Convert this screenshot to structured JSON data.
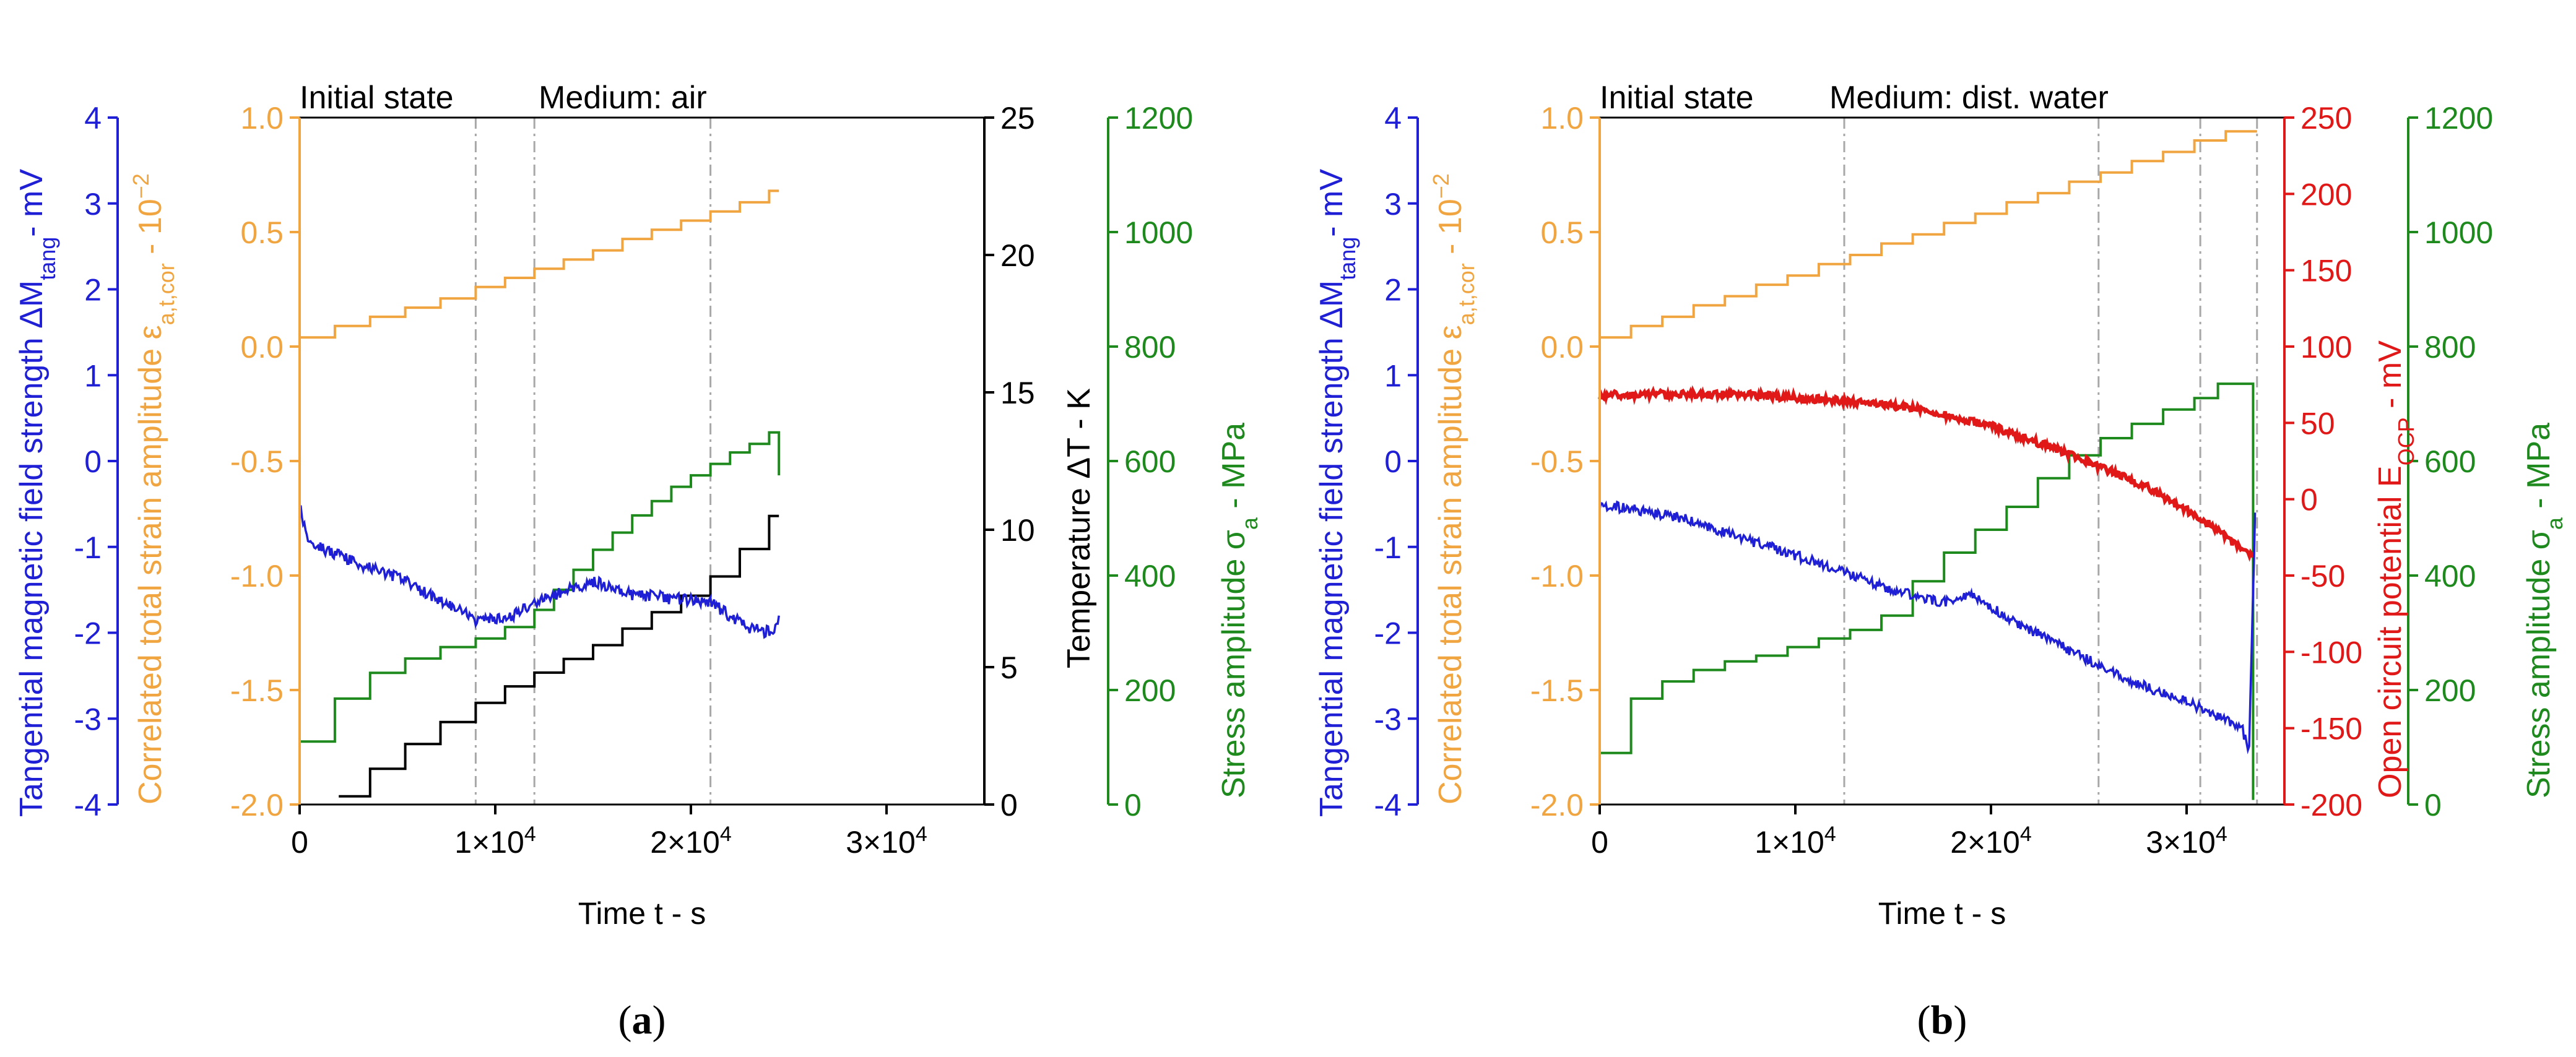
{
  "colors": {
    "blue": "#1f1fd6",
    "orange": "#f0a540",
    "black": "#000000",
    "green": "#1e8a1e",
    "red": "#e01818",
    "grid": "#a8a8a8"
  },
  "chart_data": [
    {
      "panel": "a",
      "type": "line",
      "caption": {
        "open": "(",
        "letter": "a",
        "close": ")"
      },
      "header": {
        "state": "Initial state",
        "medium": "Medium: air"
      },
      "xlabel": "Time t - s",
      "xlim": [
        0,
        35000
      ],
      "xticks": [
        {
          "v": 0,
          "t": "0"
        },
        {
          "v": 10000,
          "t": "1×10"
        },
        {
          "v": 20000,
          "t": "2×10"
        },
        {
          "v": 30000,
          "t": "3×10"
        }
      ],
      "xtick_exp": "4",
      "vlines": [
        9000,
        12000,
        21000
      ],
      "axes": {
        "blue": {
          "label_main": "Tangential magnetic field strength ΔM",
          "label_sub": "tang",
          "label_tail": "- mV",
          "range": [
            -4,
            4
          ],
          "ticks": [
            "-4",
            "-3",
            "-2",
            "-1",
            "0",
            "1",
            "2",
            "3",
            "4"
          ]
        },
        "orange": {
          "label_main": "Correlated total strain amplitude ε",
          "label_sub": "a,t,cor",
          "label_tail": " - 10",
          "label_sup": "−2",
          "range": [
            -2.0,
            1.0
          ],
          "ticks": [
            "-2.0",
            "-1.5",
            "-1.0",
            "-0.5",
            "0.0",
            "0.5",
            "1.0"
          ]
        },
        "black": {
          "label": "Temperature ΔT - K",
          "range": [
            0,
            25
          ],
          "ticks": [
            "0",
            "5",
            "10",
            "15",
            "20",
            "25"
          ]
        },
        "green": {
          "label_main": "Stress amplitude σ",
          "label_sub": "a",
          "label_tail": " - MPa",
          "range": [
            0,
            1200
          ],
          "ticks": [
            "0",
            "200",
            "400",
            "600",
            "800",
            "1000",
            "1200"
          ]
        }
      },
      "series": [
        {
          "name": "Correlated total strain amplitude",
          "axis": "orange",
          "kind": "staircase",
          "x_end": 24500,
          "steps": [
            {
              "x": 0,
              "y": 0.04
            },
            {
              "x": 1800,
              "y": 0.09
            },
            {
              "x": 3600,
              "y": 0.13
            },
            {
              "x": 5400,
              "y": 0.17
            },
            {
              "x": 7200,
              "y": 0.21
            },
            {
              "x": 9000,
              "y": 0.26
            },
            {
              "x": 10500,
              "y": 0.3
            },
            {
              "x": 12000,
              "y": 0.34
            },
            {
              "x": 13500,
              "y": 0.38
            },
            {
              "x": 15000,
              "y": 0.42
            },
            {
              "x": 16500,
              "y": 0.47
            },
            {
              "x": 18000,
              "y": 0.51
            },
            {
              "x": 19500,
              "y": 0.55
            },
            {
              "x": 21000,
              "y": 0.59
            },
            {
              "x": 22500,
              "y": 0.63
            },
            {
              "x": 24000,
              "y": 0.68
            }
          ]
        },
        {
          "name": "Stress amplitude",
          "axis": "green",
          "kind": "staircase",
          "x_end": 24500,
          "steps": [
            {
              "x": 0,
              "y": 110
            },
            {
              "x": 1800,
              "y": 185
            },
            {
              "x": 3600,
              "y": 230
            },
            {
              "x": 5400,
              "y": 255
            },
            {
              "x": 7200,
              "y": 275
            },
            {
              "x": 9000,
              "y": 290
            },
            {
              "x": 10500,
              "y": 310
            },
            {
              "x": 12000,
              "y": 340
            },
            {
              "x": 13000,
              "y": 375
            },
            {
              "x": 14000,
              "y": 410
            },
            {
              "x": 15000,
              "y": 445
            },
            {
              "x": 16000,
              "y": 475
            },
            {
              "x": 17000,
              "y": 505
            },
            {
              "x": 18000,
              "y": 530
            },
            {
              "x": 19000,
              "y": 555
            },
            {
              "x": 20000,
              "y": 575
            },
            {
              "x": 21000,
              "y": 595
            },
            {
              "x": 22000,
              "y": 615
            },
            {
              "x": 23000,
              "y": 630
            },
            {
              "x": 24000,
              "y": 650
            }
          ],
          "drop_to": 575
        },
        {
          "name": "Temperature",
          "axis": "black",
          "kind": "staircase",
          "x_start": 2000,
          "x_end": 24500,
          "steps": [
            {
              "x": 2000,
              "y": 0.3
            },
            {
              "x": 3600,
              "y": 1.3
            },
            {
              "x": 5400,
              "y": 2.2
            },
            {
              "x": 7200,
              "y": 3.0
            },
            {
              "x": 9000,
              "y": 3.7
            },
            {
              "x": 10500,
              "y": 4.3
            },
            {
              "x": 12000,
              "y": 4.8
            },
            {
              "x": 13500,
              "y": 5.3
            },
            {
              "x": 15000,
              "y": 5.8
            },
            {
              "x": 16500,
              "y": 6.4
            },
            {
              "x": 18000,
              "y": 7.0
            },
            {
              "x": 19500,
              "y": 7.6
            },
            {
              "x": 21000,
              "y": 8.3
            },
            {
              "x": 22500,
              "y": 9.3
            },
            {
              "x": 24000,
              "y": 10.5
            }
          ]
        },
        {
          "name": "Tangential magnetic field strength",
          "axis": "blue",
          "kind": "noisy",
          "noise": 0.07,
          "points": [
            {
              "x": 0,
              "y": -0.45
            },
            {
              "x": 300,
              "y": -0.85
            },
            {
              "x": 1000,
              "y": -1.0
            },
            {
              "x": 3000,
              "y": -1.2
            },
            {
              "x": 5000,
              "y": -1.35
            },
            {
              "x": 7000,
              "y": -1.6
            },
            {
              "x": 9000,
              "y": -1.85
            },
            {
              "x": 10500,
              "y": -1.85
            },
            {
              "x": 12500,
              "y": -1.6
            },
            {
              "x": 15000,
              "y": -1.4
            },
            {
              "x": 17000,
              "y": -1.55
            },
            {
              "x": 19000,
              "y": -1.6
            },
            {
              "x": 21000,
              "y": -1.65
            },
            {
              "x": 23000,
              "y": -1.95
            },
            {
              "x": 24200,
              "y": -2.0
            },
            {
              "x": 24500,
              "y": -1.8
            }
          ]
        }
      ]
    },
    {
      "panel": "b",
      "type": "line",
      "caption": {
        "open": "(",
        "letter": "b",
        "close": ")"
      },
      "header": {
        "state": "Initial state",
        "medium": "Medium: dist. water"
      },
      "xlabel": "Time t - s",
      "xlim": [
        0,
        35000
      ],
      "xticks": [
        {
          "v": 0,
          "t": "0"
        },
        {
          "v": 10000,
          "t": "1×10"
        },
        {
          "v": 20000,
          "t": "2×10"
        },
        {
          "v": 30000,
          "t": "3×10"
        }
      ],
      "xtick_exp": "4",
      "vlines": [
        12500,
        25500,
        30700,
        33600
      ],
      "axes": {
        "blue": {
          "label_main": "Tangential magnetic field strength ΔM",
          "label_sub": "tang",
          "label_tail": "- mV",
          "range": [
            -4,
            4
          ],
          "ticks": [
            "-4",
            "-3",
            "-2",
            "-1",
            "0",
            "1",
            "2",
            "3",
            "4"
          ]
        },
        "orange": {
          "label_main": "Correlated total strain amplitude ε",
          "label_sub": "a,t,cor",
          "label_tail": " - 10",
          "label_sup": "−2",
          "range": [
            -2.0,
            1.0
          ],
          "ticks": [
            "-2.0",
            "-1.5",
            "-1.0",
            "-0.5",
            "0.0",
            "0.5",
            "1.0"
          ]
        },
        "red": {
          "label_main": "Open circuit potential E",
          "label_sub": "OCP",
          "label_tail": " - mV",
          "range": [
            -200,
            250
          ],
          "ticks": [
            "-200",
            "-150",
            "-100",
            "-50",
            "0",
            "50",
            "100",
            "150",
            "200",
            "250"
          ]
        },
        "green": {
          "label_main": "Stress amplitude σ",
          "label_sub": "a",
          "label_tail": " - MPa",
          "range": [
            0,
            1200
          ],
          "ticks": [
            "0",
            "200",
            "400",
            "600",
            "800",
            "1000",
            "1200"
          ]
        }
      },
      "series": [
        {
          "name": "Correlated total strain amplitude",
          "axis": "orange",
          "kind": "staircase",
          "x_end": 33600,
          "steps": [
            {
              "x": 0,
              "y": 0.04
            },
            {
              "x": 1600,
              "y": 0.09
            },
            {
              "x": 3200,
              "y": 0.13
            },
            {
              "x": 4800,
              "y": 0.18
            },
            {
              "x": 6400,
              "y": 0.22
            },
            {
              "x": 8000,
              "y": 0.27
            },
            {
              "x": 9600,
              "y": 0.31
            },
            {
              "x": 11200,
              "y": 0.36
            },
            {
              "x": 12800,
              "y": 0.4
            },
            {
              "x": 14400,
              "y": 0.45
            },
            {
              "x": 16000,
              "y": 0.49
            },
            {
              "x": 17600,
              "y": 0.54
            },
            {
              "x": 19200,
              "y": 0.58
            },
            {
              "x": 20800,
              "y": 0.63
            },
            {
              "x": 22400,
              "y": 0.67
            },
            {
              "x": 24000,
              "y": 0.72
            },
            {
              "x": 25600,
              "y": 0.76
            },
            {
              "x": 27200,
              "y": 0.81
            },
            {
              "x": 28800,
              "y": 0.85
            },
            {
              "x": 30400,
              "y": 0.9
            },
            {
              "x": 32000,
              "y": 0.94
            }
          ]
        },
        {
          "name": "Stress amplitude",
          "axis": "green",
          "kind": "staircase",
          "x_end": 33400,
          "steps": [
            {
              "x": 0,
              "y": 90
            },
            {
              "x": 1600,
              "y": 185
            },
            {
              "x": 3200,
              "y": 215
            },
            {
              "x": 4800,
              "y": 235
            },
            {
              "x": 6400,
              "y": 250
            },
            {
              "x": 8000,
              "y": 260
            },
            {
              "x": 9600,
              "y": 275
            },
            {
              "x": 11200,
              "y": 290
            },
            {
              "x": 12800,
              "y": 305
            },
            {
              "x": 14400,
              "y": 330
            },
            {
              "x": 16000,
              "y": 390
            },
            {
              "x": 17600,
              "y": 440
            },
            {
              "x": 19200,
              "y": 480
            },
            {
              "x": 20800,
              "y": 520
            },
            {
              "x": 22400,
              "y": 570
            },
            {
              "x": 24000,
              "y": 610
            },
            {
              "x": 25600,
              "y": 640
            },
            {
              "x": 27200,
              "y": 665
            },
            {
              "x": 28800,
              "y": 690
            },
            {
              "x": 30400,
              "y": 710
            },
            {
              "x": 31600,
              "y": 735
            }
          ],
          "drop_to": 8
        },
        {
          "name": "Open circuit potential",
          "axis": "red",
          "kind": "noisy",
          "noise": 2.5,
          "points": [
            {
              "x": 0,
              "y": 68
            },
            {
              "x": 4000,
              "y": 69
            },
            {
              "x": 8000,
              "y": 68
            },
            {
              "x": 12000,
              "y": 65
            },
            {
              "x": 16000,
              "y": 60
            },
            {
              "x": 20000,
              "y": 48
            },
            {
              "x": 24000,
              "y": 30
            },
            {
              "x": 28000,
              "y": 8
            },
            {
              "x": 31000,
              "y": -15
            },
            {
              "x": 33400,
              "y": -38
            }
          ]
        },
        {
          "name": "Tangential magnetic field strength",
          "axis": "blue",
          "kind": "noisy",
          "noise": 0.06,
          "points": [
            {
              "x": 0,
              "y": -0.5
            },
            {
              "x": 4000,
              "y": -0.65
            },
            {
              "x": 8000,
              "y": -0.95
            },
            {
              "x": 12000,
              "y": -1.25
            },
            {
              "x": 15000,
              "y": -1.5
            },
            {
              "x": 17500,
              "y": -1.65
            },
            {
              "x": 19000,
              "y": -1.55
            },
            {
              "x": 21000,
              "y": -1.85
            },
            {
              "x": 24000,
              "y": -2.2
            },
            {
              "x": 27000,
              "y": -2.55
            },
            {
              "x": 30000,
              "y": -2.8
            },
            {
              "x": 32800,
              "y": -3.1
            },
            {
              "x": 33200,
              "y": -3.35
            },
            {
              "x": 33500,
              "y": -0.6
            }
          ]
        }
      ]
    }
  ]
}
